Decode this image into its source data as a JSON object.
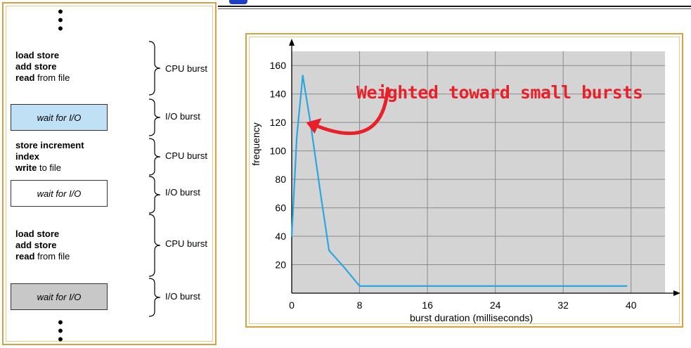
{
  "sequence": {
    "blocks": [
      {
        "type": "cpu",
        "lines": [
          {
            "bold": "load store",
            "rest": ""
          },
          {
            "bold": "add store",
            "rest": ""
          },
          {
            "bold": "read",
            "rest": " from file"
          }
        ],
        "burst_label": "CPU burst"
      },
      {
        "type": "io",
        "box_text": "wait for I/O",
        "shade": "blue",
        "burst_label": "I/O burst"
      },
      {
        "type": "cpu",
        "lines": [
          {
            "bold": "store increment",
            "rest": ""
          },
          {
            "bold": "index",
            "rest": ""
          },
          {
            "bold": "write",
            "rest": " to file"
          }
        ],
        "burst_label": "CPU burst"
      },
      {
        "type": "io",
        "box_text": "wait for I/O",
        "shade": "white",
        "burst_label": "I/O burst"
      },
      {
        "type": "cpu",
        "lines": [
          {
            "bold": "load store",
            "rest": ""
          },
          {
            "bold": "add store",
            "rest": ""
          },
          {
            "bold": "read",
            "rest": " from file"
          }
        ],
        "burst_label": "CPU burst"
      },
      {
        "type": "io",
        "box_text": "wait for I/O",
        "shade": "gray",
        "burst_label": "I/O burst"
      }
    ]
  },
  "annotation": "Weighted toward small bursts",
  "colors": {
    "line": "#2aa6e0",
    "plot_bg": "#d4d4d4",
    "grid": "#8a8a8a",
    "arrow": "#e8202a",
    "border": "#d9a040"
  },
  "chart_data": {
    "type": "line",
    "title": "",
    "xlabel": "burst duration (milliseconds)",
    "ylabel": "frequency",
    "xlim": [
      0,
      44
    ],
    "ylim": [
      0,
      170
    ],
    "xticks": [
      0,
      8,
      16,
      24,
      32,
      40
    ],
    "yticks": [
      20,
      40,
      60,
      80,
      100,
      120,
      140,
      160
    ],
    "grid": true,
    "series": [
      {
        "x": [
          0,
          0.6,
          1.3,
          2.2,
          3.4,
          4.4,
          6.2,
          8,
          16,
          24,
          32,
          39.5
        ],
        "y": [
          40,
          110,
          153,
          120,
          70,
          30,
          18,
          5,
          5,
          5,
          5,
          5
        ]
      }
    ]
  }
}
